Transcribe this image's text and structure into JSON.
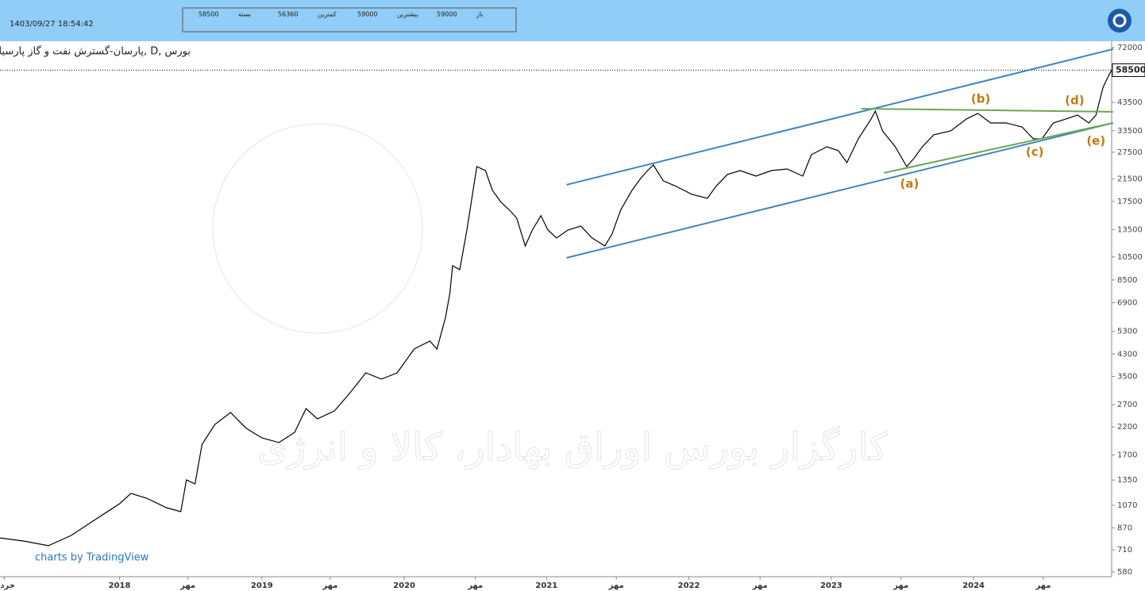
{
  "header": {
    "datetime": "1403/09/27 18:54:42",
    "ohlc": [
      {
        "value": 58500,
        "label": "بسته"
      },
      {
        "value": 56360,
        "label": "کمترین"
      },
      {
        "value": 59000,
        "label": "بیشترین"
      },
      {
        "value": 59000,
        "label": "باز"
      }
    ]
  },
  "chart_data": {
    "type": "line",
    "title": "پارسان-گسترش نفت و گاز پارسیان, D, بورس",
    "watermark": "کارگزار بورس اوراق بهادار، کالا و انرژی",
    "credit": "charts by TradingView",
    "log_scale": true,
    "color": "#000000",
    "x": [
      2017.16,
      2017.33,
      2017.5,
      2017.66,
      2017.83,
      2018.0,
      2018.08,
      2018.19,
      2018.33,
      2018.43,
      2018.47,
      2018.53,
      2018.58,
      2018.67,
      2018.78,
      2018.89,
      2019.0,
      2019.12,
      2019.23,
      2019.31,
      2019.39,
      2019.51,
      2019.62,
      2019.73,
      2019.84,
      2019.95,
      2020.07,
      2020.18,
      2020.23,
      2020.29,
      2020.32,
      2020.34,
      2020.39,
      2020.44,
      2020.51,
      2020.57,
      2020.62,
      2020.68,
      2020.74,
      2020.79,
      2020.85,
      2020.9,
      2020.96,
      2021.01,
      2021.07,
      2021.15,
      2021.24,
      2021.32,
      2021.41,
      2021.46,
      2021.52,
      2021.6,
      2021.66,
      2021.71,
      2021.75,
      2021.82,
      2021.91,
      2022.02,
      2022.13,
      2022.19,
      2022.27,
      2022.36,
      2022.47,
      2022.58,
      2022.69,
      2022.8,
      2022.86,
      2022.97,
      2023.05,
      2023.11,
      2023.19,
      2023.28,
      2023.31,
      2023.36,
      2023.45,
      2023.53,
      2023.58,
      2023.64,
      2023.72,
      2023.84,
      2023.95,
      2024.03,
      2024.12,
      2024.23,
      2024.34,
      2024.42,
      2024.48,
      2024.56,
      2024.65,
      2024.73,
      2024.81,
      2024.86,
      2024.91,
      2024.95,
      2024.97
    ],
    "values": [
      793,
      770,
      738,
      811,
      939,
      1086,
      1195,
      1143,
      1047,
      1009,
      1352,
      1303,
      1876,
      2251,
      2513,
      2172,
      1989,
      1905,
      2093,
      2606,
      2370,
      2550,
      3015,
      3617,
      3414,
      3617,
      4503,
      4845,
      4503,
      6029,
      7503,
      9684,
      9346,
      13450,
      24106,
      23242,
      19368,
      17366,
      16142,
      15012,
      11621,
      13450,
      15343,
      13450,
      12499,
      13450,
      13954,
      12499,
      11621,
      12967,
      16142,
      19368,
      21600,
      23242,
      24451,
      21146,
      20095,
      18677,
      18007,
      20095,
      22414,
      23242,
      22082,
      23242,
      23587,
      22082,
      26892,
      28930,
      27900,
      24998,
      31118,
      37354,
      40154,
      33473,
      28930,
      24106,
      25934,
      28930,
      32285,
      33473,
      37354,
      39319,
      36007,
      36007,
      34718,
      31118,
      31118,
      36007,
      37354,
      38729,
      36007,
      38729,
      49990,
      55793,
      58500
    ],
    "last_price": 58500,
    "xlim": [
      2017.16,
      2024.97
    ],
    "xticks": [
      {
        "value": 2017.19,
        "label": "خرداد"
      },
      2018,
      {
        "value": 2018.48,
        "label": "مهر"
      },
      2019,
      {
        "value": 2019.48,
        "label": "مهر"
      },
      2020,
      {
        "value": 2020.5,
        "label": "مهر"
      },
      2021,
      {
        "value": 2021.49,
        "label": "مهر"
      },
      2022,
      {
        "value": 2022.5,
        "label": "مهر"
      },
      2023,
      {
        "value": 2023.49,
        "label": "مهر"
      },
      2024,
      {
        "value": 2024.49,
        "label": "مهر"
      }
    ],
    "ylim": [
      555,
      76300
    ],
    "yticks": [
      580,
      710,
      870,
      1070,
      1350,
      1700,
      2200,
      2700,
      3500,
      4300,
      5300,
      6900,
      8500,
      10500,
      13500,
      17500,
      21500,
      27500,
      33500,
      43500,
      72000
    ],
    "trendlines": [
      {
        "color": "#3a84c4",
        "x": [
          2021.14,
          2024.98
        ],
        "y": [
          20383,
          70957
        ]
      },
      {
        "color": "#3a84c4",
        "x": [
          2021.14,
          2024.98
        ],
        "y": [
          10418,
          36007
        ]
      },
      {
        "color": "#6ba84f",
        "x": [
          2023.21,
          2024.98
        ],
        "y": [
          41062,
          39881
        ]
      },
      {
        "color": "#6ba84f",
        "x": [
          2023.37,
          2024.98
        ],
        "y": [
          22745,
          36007
        ]
      }
    ],
    "annotations": [
      {
        "text": "(a)",
        "x": 2023.55,
        "y": 20534
      },
      {
        "text": "(b)",
        "x": 2024.05,
        "y": 44820
      },
      {
        "text": "(c)",
        "x": 2024.43,
        "y": 27490
      },
      {
        "text": "(d)",
        "x": 2024.71,
        "y": 44165
      },
      {
        "text": "(e)",
        "x": 2024.86,
        "y": 30442
      }
    ]
  }
}
